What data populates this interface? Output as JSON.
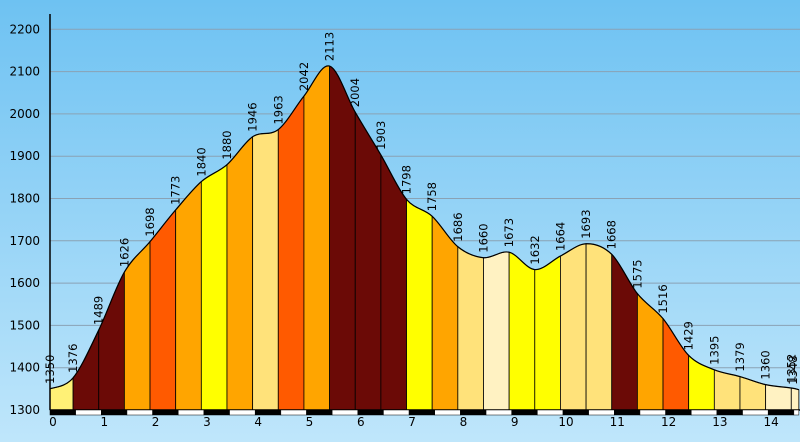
{
  "chart_data": {
    "type": "area",
    "title": "",
    "xlabel": "",
    "ylabel": "",
    "ylim": [
      1300,
      2200
    ],
    "xlim": [
      0,
      14.5
    ],
    "y_ticks": [
      "1300",
      "1400",
      "1500",
      "1600",
      "1700",
      "1800",
      "1900",
      "2000",
      "2100",
      "2200"
    ],
    "x_ticks": [
      "0",
      "1",
      "2",
      "3",
      "4",
      "5",
      "6",
      "7",
      "8",
      "9",
      "10",
      "11",
      "12",
      "13",
      "14"
    ],
    "grid": true,
    "background": "#7fc9f3",
    "series": [
      {
        "x": [
          0,
          0.45,
          0.95,
          1.45,
          1.95,
          2.45,
          2.95,
          3.45,
          3.95,
          4.45,
          4.95,
          5.45,
          5.95,
          6.45,
          6.95,
          7.45,
          7.95,
          8.45,
          8.95,
          9.45,
          9.95,
          10.45,
          10.95,
          11.45,
          11.95,
          12.45,
          12.95,
          13.45,
          13.95,
          14.45
        ],
        "values": [
          1350,
          1376,
          1489,
          1626,
          1698,
          1773,
          1840,
          1880,
          1946,
          1963,
          2042,
          2113,
          2004,
          1903,
          1798,
          1758,
          1686,
          1660,
          1673,
          1632,
          1664,
          1693,
          1668,
          1575,
          1516,
          1429,
          1395,
          1379,
          1360,
          1352
        ],
        "labels": [
          "1350",
          "1376",
          "1489",
          "1626",
          "1698",
          "1773",
          "1840",
          "1880",
          "1946",
          "1963",
          "2042",
          "2113",
          "2004",
          "1903",
          "1798",
          "1758",
          "1686",
          "1660",
          "1673",
          "1632",
          "1664",
          "1693",
          "1668",
          "1575",
          "1516",
          "1429",
          "1395",
          "1379",
          "1360",
          "1352"
        ]
      }
    ],
    "end_label": "1348",
    "segment_colors": [
      "#fff176",
      "#6b0a06",
      "#6b0a06",
      "#ffa500",
      "#ff5a00",
      "#ffa500",
      "#ffff00",
      "#ffa500",
      "#ffe27a",
      "#ff5a00",
      "#ffa500",
      "#6b0a06",
      "#6b0a06",
      "#6b0a06",
      "#ffff00",
      "#ffa500",
      "#ffe27a",
      "#fff2c2",
      "#ffff00",
      "#ffff00",
      "#ffe27a",
      "#ffe27a",
      "#6b0a06",
      "#ffa500",
      "#ff5a00",
      "#ffff00",
      "#ffe27a",
      "#ffe27a",
      "#fff2c2"
    ],
    "km_bar_colors": [
      "#000000",
      "#ffffff"
    ]
  }
}
